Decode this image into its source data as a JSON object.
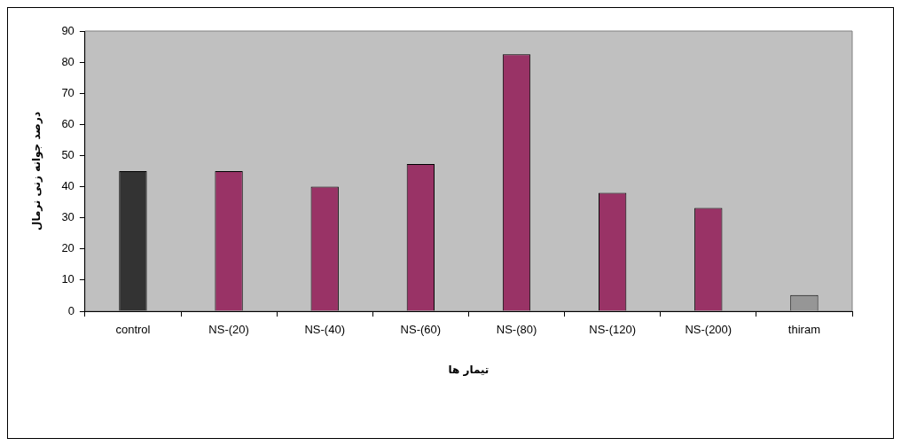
{
  "chart_data": {
    "type": "bar",
    "xlabel": "تیمار ها",
    "ylabel": "درصد جوانه زنی نرمال",
    "categories": [
      "control",
      "NS-(20)",
      "NS-(40)",
      "NS-(60)",
      "NS-(80)",
      "NS-(120)",
      "NS-(200)",
      "thiram"
    ],
    "values": [
      45,
      45,
      40,
      47.3,
      82.5,
      38,
      33.2,
      5.2
    ],
    "colors": [
      "#333333",
      "#993366",
      "#993366",
      "#993366",
      "#993366",
      "#993366",
      "#993366",
      "#969696"
    ],
    "ylim": [
      0,
      90
    ],
    "yticks": [
      0,
      10,
      20,
      30,
      40,
      50,
      60,
      70,
      80,
      90
    ],
    "grid": false,
    "legend": false
  }
}
